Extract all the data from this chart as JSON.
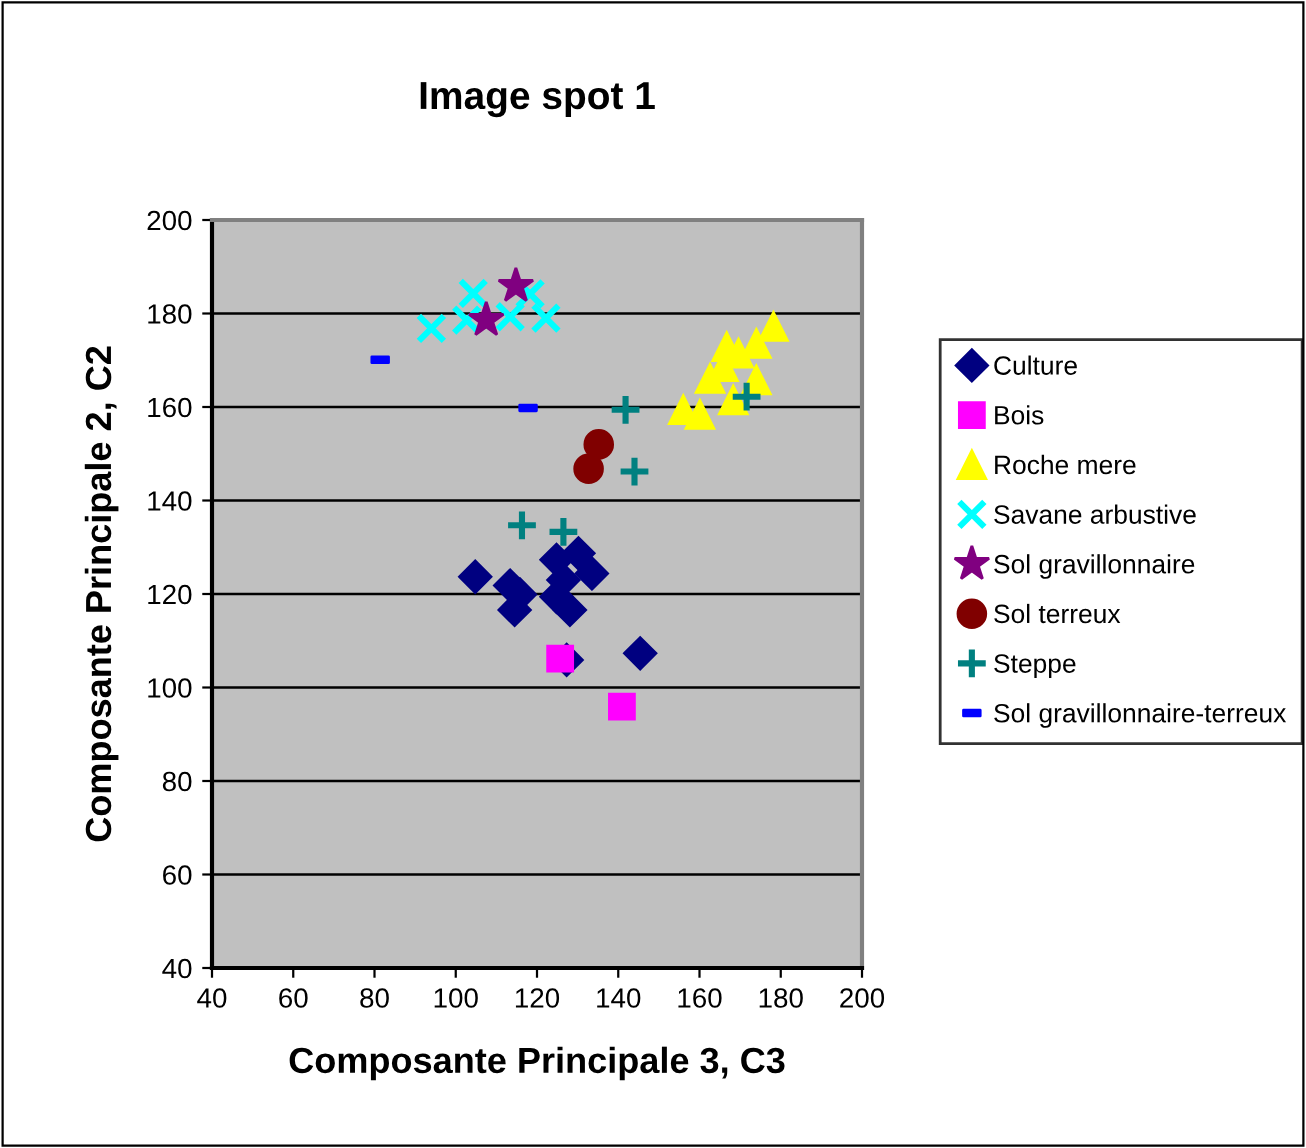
{
  "chart_data": {
    "type": "scatter",
    "title": "Image spot 1",
    "xlabel": "Composante Principale 3, C3",
    "ylabel": "Composante Principale 2, C2",
    "xlim": [
      40,
      200
    ],
    "xticks": [
      40,
      60,
      80,
      100,
      120,
      140,
      160,
      180,
      200
    ],
    "ylim": [
      40,
      200
    ],
    "yticks": [
      40,
      60,
      80,
      100,
      120,
      140,
      160,
      180,
      200
    ],
    "grid": "y",
    "legend": "right",
    "series": [
      {
        "name": "Culture",
        "color": "#000080",
        "marker": "diamond",
        "x": [
          104.8,
          113.4,
          115.8,
          114.5,
          124.8,
          130.2,
          133.5,
          126.5,
          124.8,
          128.1,
          127.3,
          145.4
        ],
        "values": [
          123.7,
          121.8,
          119.9,
          116.6,
          127.3,
          128.7,
          124.4,
          123,
          119.4,
          116.6,
          105.9,
          107.3
        ]
      },
      {
        "name": "Bois",
        "color": "#ff00ff",
        "marker": "square",
        "x": [
          125.7,
          140.9
        ],
        "values": [
          106.2,
          95.9
        ]
      },
      {
        "name": "Roche mere",
        "color": "#ffff00",
        "marker": "triangle",
        "x": [
          156,
          160.1,
          162.6,
          166.7,
          169.6,
          174,
          178.2,
          168.3,
          174,
          165.9
        ],
        "values": [
          159.4,
          158.4,
          166.1,
          172.9,
          171.5,
          173.6,
          177.2,
          161.5,
          165.8,
          168.6
        ]
      },
      {
        "name": "Savane arbustive",
        "color": "#00ffff",
        "marker": "x",
        "x": [
          94,
          104.3,
          102.7,
          113.4,
          118.3,
          122.2
        ],
        "values": [
          176.8,
          184.3,
          178.6,
          179.3,
          184.2,
          179
        ]
      },
      {
        "name": "Sol gravillonnaire",
        "color": "#800080",
        "marker": "star",
        "x": [
          107.5,
          114.8
        ],
        "values": [
          178.6,
          185.9
        ]
      },
      {
        "name": "Sol terreux",
        "color": "#800000",
        "marker": "circle",
        "x": [
          135.2,
          132.7
        ],
        "values": [
          152,
          146.8
        ]
      },
      {
        "name": "Steppe",
        "color": "#008080",
        "marker": "cross",
        "x": [
          141.8,
          144,
          116.3,
          126.5,
          171.6
        ],
        "values": [
          159.4,
          146.2,
          134.7,
          133.3,
          162.2
        ]
      },
      {
        "name": "Sol gravillonnaire-terreux",
        "color": "#0000ff",
        "marker": "square",
        "x": [
          81.4,
          117.8
        ],
        "values": [
          170.1,
          159.8
        ]
      }
    ]
  }
}
